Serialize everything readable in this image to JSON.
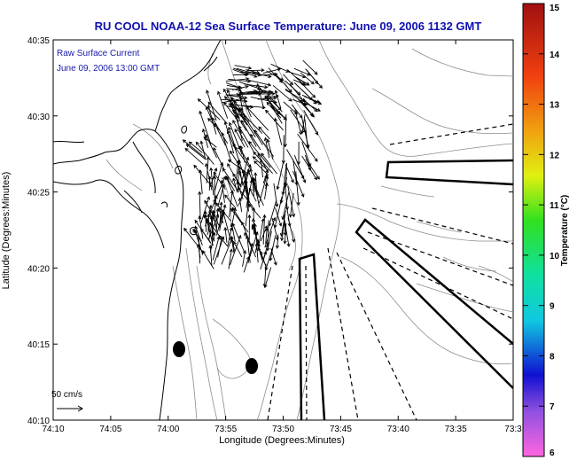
{
  "title": "RU COOL  NOAA-12  Sea Surface Temperature:  June 09, 2006 1132 GMT",
  "annotation": {
    "line1": "Raw Surface Current",
    "line2": "June 09, 2006 13:00 GMT"
  },
  "scale_label": "50 cm/s",
  "axes": {
    "xlabel": "Longitude (Degrees:Minutes)",
    "ylabel": "Latitude (Degrees:Minutes)",
    "x_ticks": [
      "74:10",
      "74:05",
      "74:00",
      "73:55",
      "73:50",
      "73:45",
      "73:40",
      "73:35",
      "73:3"
    ],
    "y_ticks": [
      "40:35",
      "40:30",
      "40:25",
      "40:20",
      "40:15",
      "40:10"
    ]
  },
  "colorbar": {
    "label": "Temperature (°C)",
    "ticks": [
      "15",
      "14",
      "13",
      "12",
      "11",
      "10",
      "9",
      "8",
      "7",
      "6"
    ],
    "range": [
      6,
      15
    ]
  },
  "colors": {
    "title": "#1010b0",
    "annotation": "#1a1aa8",
    "contour": "#888888",
    "coast": "#000000"
  }
}
